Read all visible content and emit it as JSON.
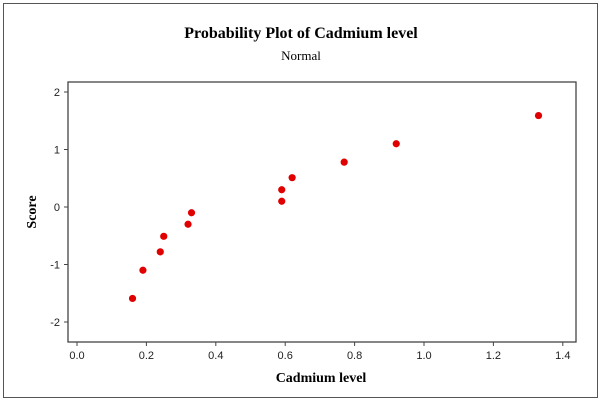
{
  "chart_data": {
    "type": "scatter",
    "title": "Probability Plot of Cadmium level",
    "subtitle": "Normal",
    "xlabel": "Cadmium level",
    "ylabel": "Score",
    "xlim": [
      -0.02,
      1.45
    ],
    "ylim": [
      -2.3,
      2.3
    ],
    "xticks": [
      0.0,
      0.2,
      0.4,
      0.6,
      0.8,
      1.0,
      1.2,
      1.4
    ],
    "xtick_labels": [
      "0.0",
      "0.2",
      "0.4",
      "0.6",
      "0.8",
      "1.0",
      "1.2",
      "1.4"
    ],
    "yticks": [
      -2,
      -1,
      0,
      1,
      2
    ],
    "ytick_labels": [
      "-2",
      "-1",
      "0",
      "1",
      "2"
    ],
    "grid": false,
    "marker_color": "#e00000",
    "series": [
      {
        "name": "Cadmium level",
        "x": [
          0.16,
          0.19,
          0.24,
          0.25,
          0.32,
          0.33,
          0.59,
          0.59,
          0.62,
          0.77,
          0.92,
          1.33
        ],
        "y": [
          -1.59,
          -1.1,
          -0.78,
          -0.51,
          -0.3,
          -0.1,
          0.1,
          0.3,
          0.51,
          0.78,
          1.1,
          1.59
        ]
      }
    ]
  }
}
